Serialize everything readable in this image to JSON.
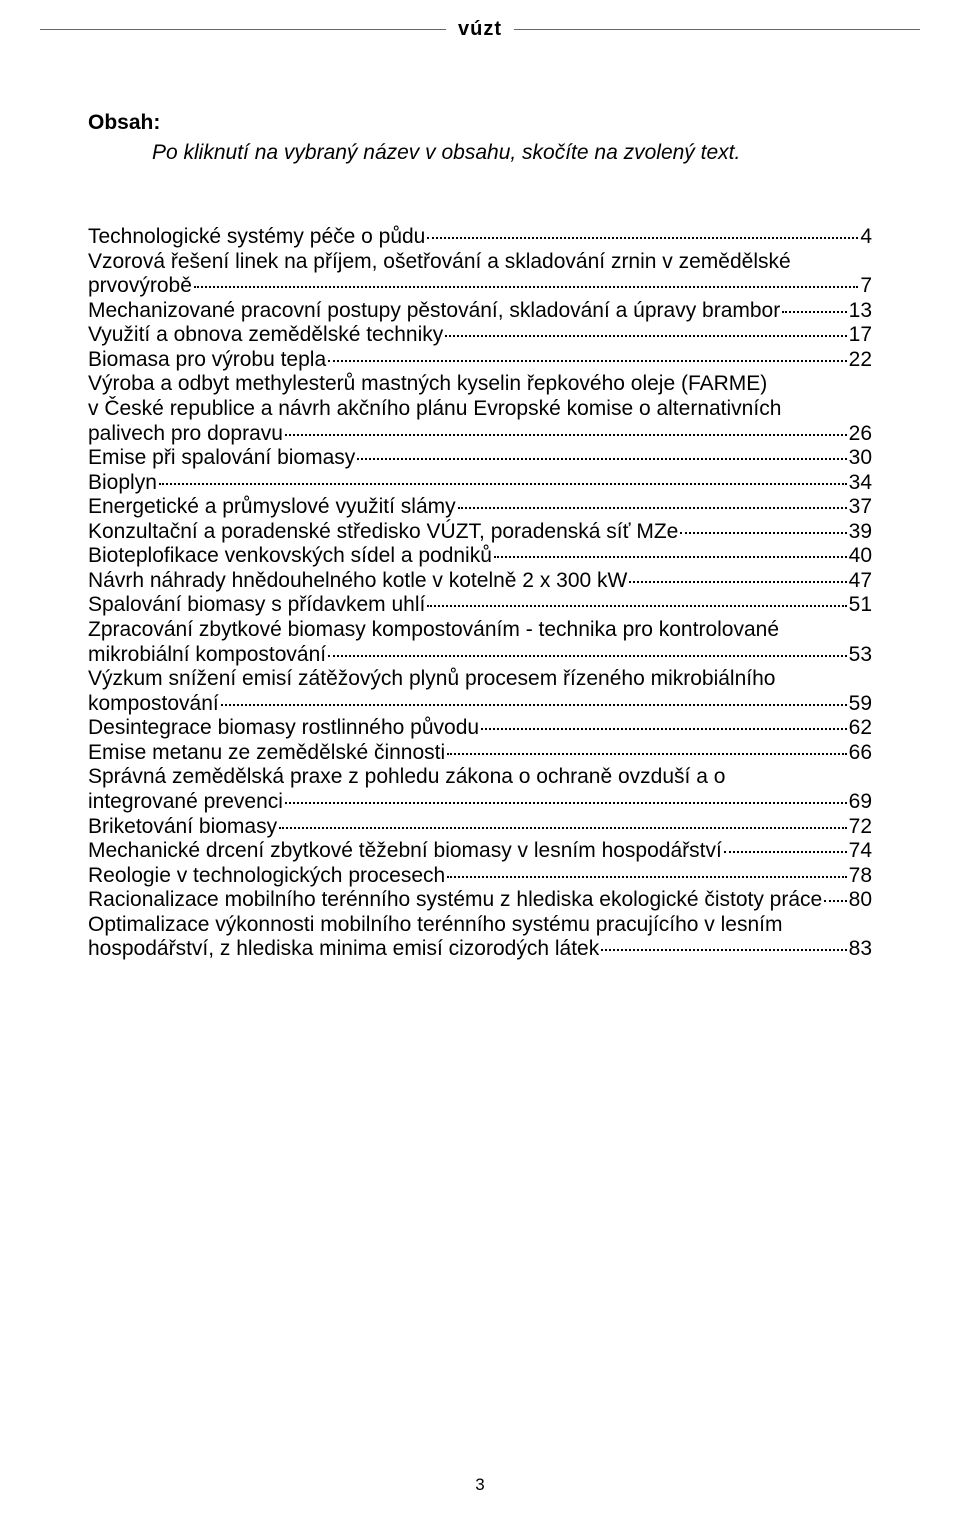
{
  "header": {
    "logo_text": "vúzt"
  },
  "title": "Obsah:",
  "note": "Po kliknutí na vybraný název v obsahu, skočíte na zvolený text.",
  "toc": [
    {
      "label": "Technologické systémy péče o půdu",
      "page": "4",
      "multi": false
    },
    {
      "label_lines": [
        "Vzorová řešení linek na příjem, ošetřování a skladování zrnin v zemědělské"
      ],
      "last_line": "prvovýrobě",
      "page": "7",
      "multi": true
    },
    {
      "label": "Mechanizované pracovní postupy pěstování, skladování a úpravy brambor",
      "page": "13",
      "multi": false
    },
    {
      "label": "Využití a obnova zemědělské techniky",
      "page": "17",
      "multi": false
    },
    {
      "label": "Biomasa pro výrobu tepla",
      "page": "22",
      "multi": false
    },
    {
      "label_lines": [
        "Výroba a odbyt methylesterů mastných kyselin řepkového oleje (FARME)",
        "v České republice a návrh akčního plánu Evropské komise o alternativních"
      ],
      "last_line": "palivech pro dopravu",
      "page": "26",
      "multi": true
    },
    {
      "label": "Emise při spalování biomasy",
      "page": "30",
      "multi": false
    },
    {
      "label": "Bioplyn",
      "page": "34",
      "multi": false
    },
    {
      "label": "Energetické a průmyslové využití slámy",
      "page": "37",
      "multi": false
    },
    {
      "label": "Konzultační a poradenské středisko VÚZT, poradenská síť MZe",
      "page": "39",
      "multi": false
    },
    {
      "label": "Bioteplofikace venkovských sídel a podniků",
      "page": "40",
      "multi": false
    },
    {
      "label": "Návrh náhrady hnědouhelného kotle v kotelně 2 x 300 kW",
      "page": "47",
      "multi": false
    },
    {
      "label": "Spalování biomasy s přídavkem uhlí",
      "page": "51",
      "multi": false
    },
    {
      "label_lines": [
        "Zpracování zbytkové biomasy kompostováním - technika pro kontrolované"
      ],
      "last_line": "mikrobiální kompostování",
      "page": "53",
      "multi": true
    },
    {
      "label_lines": [
        "Výzkum snížení emisí zátěžových plynů procesem řízeného mikrobiálního"
      ],
      "last_line": "kompostování",
      "page": "59",
      "multi": true
    },
    {
      "label": "Desintegrace biomasy rostlinného původu",
      "page": "62",
      "multi": false
    },
    {
      "label": "Emise metanu ze zemědělské činnosti",
      "page": "66",
      "multi": false
    },
    {
      "label_lines": [
        "Správná zemědělská praxe z pohledu zákona o ochraně ovzduší a o"
      ],
      "last_line": "integrované prevenci",
      "page": "69",
      "multi": true
    },
    {
      "label": "Briketování biomasy",
      "page": "72",
      "multi": false
    },
    {
      "label": "Mechanické drcení zbytkové těžební biomasy v lesním hospodářství",
      "page": "74",
      "multi": false
    },
    {
      "label": "Reologie v technologických procesech",
      "page": "78",
      "multi": false
    },
    {
      "label": "Racionalizace mobilního terénního systému z hlediska ekologické čistoty práce",
      "page": "80",
      "multi": false
    },
    {
      "label_lines": [
        "Optimalizace výkonnosti mobilního terénního systému  pracujícího v lesním"
      ],
      "last_line": "hospodářství, z hlediska minima emisí cizorodých látek",
      "page": "83",
      "multi": true
    }
  ],
  "footer_page": "3",
  "colors": {
    "text": "#000000",
    "background": "#ffffff",
    "rule": "#666666"
  }
}
